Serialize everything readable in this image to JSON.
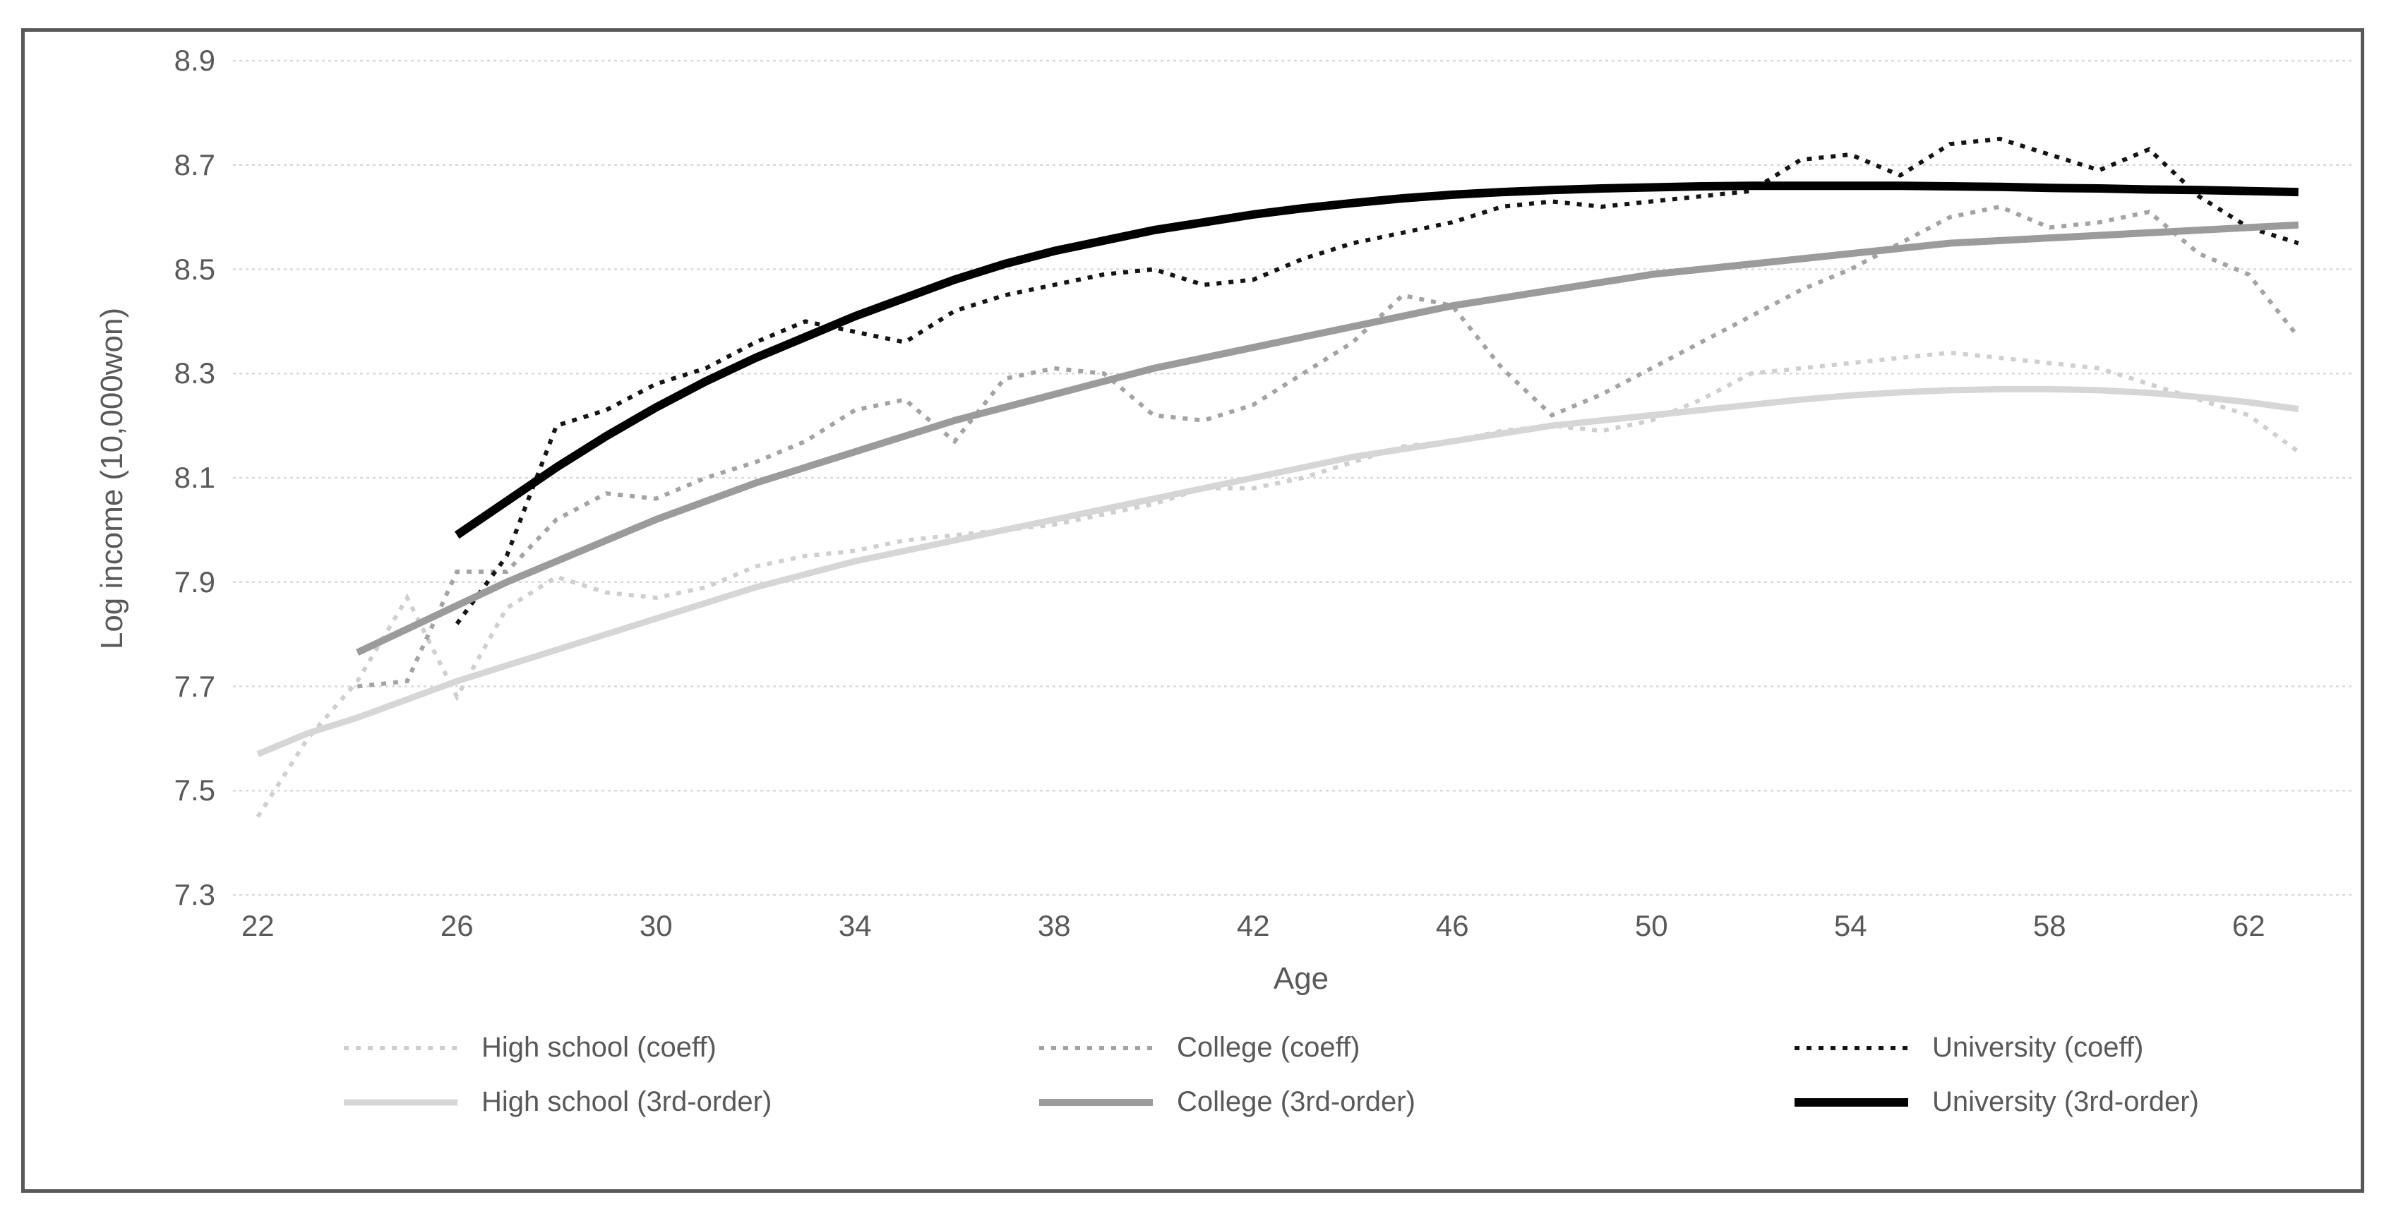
{
  "chart_data": {
    "type": "line",
    "title": "",
    "xlabel": "Age",
    "ylabel": "Log income (10,000won)",
    "x_ticks": [
      22,
      26,
      30,
      34,
      38,
      42,
      46,
      50,
      54,
      58,
      62
    ],
    "y_ticks": [
      7.3,
      7.5,
      7.7,
      7.9,
      8.1,
      8.3,
      8.5,
      8.7,
      8.9
    ],
    "xlim": [
      21.5,
      64.5
    ],
    "ylim": [
      7.3,
      8.9
    ],
    "grid": "horizontal only, light dotted lines",
    "legend_position": "bottom, 2 rows x 3 columns",
    "colors": {
      "high_school": "#cfcfcf",
      "high_school_solid": "#d6d6d6",
      "college": "#a3a3a3",
      "college_solid": "#9b9b9b",
      "university": "#141414",
      "university_solid": "#000000",
      "gridline": "#d9d9d9",
      "axis_text": "#595959",
      "frame_border": "#57585a"
    },
    "series": [
      {
        "name": "High school (coeff)",
        "style": "dotted",
        "color": "#cfcfcf",
        "start_age": 22,
        "values": [
          7.45,
          7.6,
          7.71,
          7.87,
          7.68,
          7.85,
          7.91,
          7.88,
          7.87,
          7.89,
          7.93,
          7.95,
          7.96,
          7.98,
          7.99,
          8.0,
          8.01,
          8.03,
          8.05,
          8.08,
          8.08,
          8.1,
          8.13,
          8.16,
          8.17,
          8.19,
          8.2,
          8.19,
          8.21,
          8.25,
          8.3,
          8.31,
          8.32,
          8.33,
          8.34,
          8.33,
          8.32,
          8.31,
          8.28,
          8.25,
          8.22,
          8.15
        ]
      },
      {
        "name": "College (coeff)",
        "style": "dotted",
        "color": "#a3a3a3",
        "start_age": 24,
        "values": [
          7.7,
          7.71,
          7.92,
          7.92,
          8.02,
          8.07,
          8.06,
          8.1,
          8.13,
          8.17,
          8.23,
          8.25,
          8.17,
          8.29,
          8.31,
          8.3,
          8.22,
          8.21,
          8.24,
          8.3,
          8.36,
          8.45,
          8.43,
          8.31,
          8.22,
          8.26,
          8.31,
          8.36,
          8.41,
          8.46,
          8.5,
          8.55,
          8.6,
          8.62,
          8.58,
          8.59,
          8.61,
          8.53,
          8.49,
          8.37
        ]
      },
      {
        "name": "University (coeff)",
        "style": "dotted",
        "color": "#141414",
        "start_age": 26,
        "values": [
          7.82,
          7.95,
          8.2,
          8.23,
          8.28,
          8.31,
          8.36,
          8.4,
          8.38,
          8.36,
          8.42,
          8.45,
          8.47,
          8.49,
          8.5,
          8.47,
          8.48,
          8.52,
          8.55,
          8.57,
          8.59,
          8.62,
          8.63,
          8.62,
          8.63,
          8.64,
          8.65,
          8.71,
          8.72,
          8.68,
          8.74,
          8.75,
          8.72,
          8.69,
          8.73,
          8.64,
          8.58,
          8.55
        ]
      },
      {
        "name": "High school (3rd-order)",
        "style": "solid",
        "color": "#d6d6d6",
        "start_age": 22,
        "values": [
          7.57,
          7.61,
          7.64,
          7.675,
          7.71,
          7.74,
          7.77,
          7.8,
          7.83,
          7.86,
          7.89,
          7.915,
          7.94,
          7.96,
          7.98,
          8.0,
          8.02,
          8.04,
          8.06,
          8.08,
          8.1,
          8.12,
          8.14,
          8.155,
          8.17,
          8.185,
          8.2,
          8.21,
          8.22,
          8.23,
          8.24,
          8.25,
          8.258,
          8.264,
          8.268,
          8.27,
          8.27,
          8.268,
          8.263,
          8.255,
          8.245,
          8.232
        ]
      },
      {
        "name": "College (3rd-order)",
        "style": "solid",
        "color": "#9b9b9b",
        "start_age": 24,
        "values": [
          7.765,
          7.81,
          7.855,
          7.9,
          7.94,
          7.98,
          8.02,
          8.055,
          8.09,
          8.12,
          8.15,
          8.18,
          8.21,
          8.235,
          8.26,
          8.285,
          8.31,
          8.33,
          8.35,
          8.37,
          8.39,
          8.41,
          8.43,
          8.445,
          8.46,
          8.475,
          8.49,
          8.5,
          8.51,
          8.52,
          8.53,
          8.54,
          8.55,
          8.555,
          8.56,
          8.565,
          8.57,
          8.575,
          8.58,
          8.585
        ]
      },
      {
        "name": "University (3rd-order)",
        "style": "solid",
        "color": "#000000",
        "start_age": 26,
        "values": [
          7.99,
          8.055,
          8.12,
          8.18,
          8.235,
          8.285,
          8.33,
          8.37,
          8.41,
          8.445,
          8.48,
          8.51,
          8.535,
          8.555,
          8.575,
          8.59,
          8.605,
          8.617,
          8.627,
          8.636,
          8.643,
          8.648,
          8.652,
          8.655,
          8.657,
          8.659,
          8.66,
          8.66,
          8.66,
          8.66,
          8.659,
          8.658,
          8.656,
          8.655,
          8.653,
          8.652,
          8.65,
          8.648
        ]
      }
    ]
  }
}
